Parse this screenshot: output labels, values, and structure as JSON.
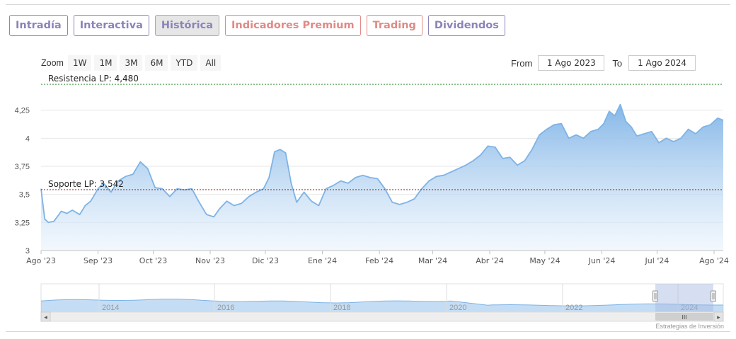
{
  "tabs": [
    {
      "label": "Intradía",
      "color": "#8a84b8"
    },
    {
      "label": "Interactiva",
      "color": "#8a84b8"
    },
    {
      "label": "Histórica",
      "color": "#8a84b8",
      "active": true
    },
    {
      "label": "Indicadores Premium",
      "color": "#e08a86"
    },
    {
      "label": "Trading",
      "color": "#e08a86"
    },
    {
      "label": "Dividendos",
      "color": "#8a84b8"
    }
  ],
  "zoom": {
    "label": "Zoom",
    "buttons": [
      "1W",
      "1M",
      "3M",
      "6M",
      "YTD",
      "All"
    ]
  },
  "range": {
    "from_label": "From",
    "from_value": "1 Ago 2023",
    "to_label": "To",
    "to_value": "1 Ago 2024"
  },
  "credits": "Estrategias de Inversión",
  "colors": {
    "line": "#7eb3e6",
    "fill_top": "#7eb3e6",
    "fill_bottom": "#eaf3fc",
    "resistance": "#3a8f3a",
    "support": "#8b1a1a",
    "grid": "#e6e6e6"
  },
  "chart_data": {
    "type": "area",
    "ylim": [
      3,
      4.5
    ],
    "y_ticks": [
      3,
      3.25,
      3.5,
      3.75,
      4,
      4.25
    ],
    "y_tick_labels": [
      "3",
      "3,25",
      "3,5",
      "3,75",
      "4",
      "4,25"
    ],
    "xlim": [
      "2023-08-01",
      "2024-08-06"
    ],
    "x_ticks": [
      {
        "date": "2023-08-01",
        "label": "Ago '23"
      },
      {
        "date": "2023-09-01",
        "label": "Sep '23"
      },
      {
        "date": "2023-10-01",
        "label": "Oct '23"
      },
      {
        "date": "2023-11-01",
        "label": "Nov '23"
      },
      {
        "date": "2023-12-01",
        "label": "Dic '23"
      },
      {
        "date": "2024-01-01",
        "label": "Ene '24"
      },
      {
        "date": "2024-02-01",
        "label": "Feb '24"
      },
      {
        "date": "2024-03-01",
        "label": "Mar '24"
      },
      {
        "date": "2024-04-01",
        "label": "Abr '24"
      },
      {
        "date": "2024-05-01",
        "label": "May '24"
      },
      {
        "date": "2024-06-01",
        "label": "Jun '24"
      },
      {
        "date": "2024-07-01",
        "label": "Jul '24"
      },
      {
        "date": "2024-08-01",
        "label": "Ago '24"
      }
    ],
    "plot_lines": [
      {
        "label": "Resistencia LP: 4,480",
        "value": 4.48,
        "style": "resistance"
      },
      {
        "label": "Soporte LP: 3,542",
        "value": 3.542,
        "style": "support"
      }
    ],
    "series": [
      {
        "x": [
          "2023-08-01",
          "2023-08-03",
          "2023-08-05",
          "2023-08-08",
          "2023-08-12",
          "2023-08-15",
          "2023-08-18",
          "2023-08-22",
          "2023-08-25",
          "2023-08-28",
          "2023-09-01",
          "2023-09-04",
          "2023-09-08",
          "2023-09-12",
          "2023-09-16",
          "2023-09-20",
          "2023-09-24",
          "2023-09-28",
          "2023-10-02",
          "2023-10-06",
          "2023-10-10",
          "2023-10-14",
          "2023-10-18",
          "2023-10-22",
          "2023-10-26",
          "2023-10-30",
          "2023-11-03",
          "2023-11-06",
          "2023-11-10",
          "2023-11-14",
          "2023-11-18",
          "2023-11-22",
          "2023-11-26",
          "2023-11-30",
          "2023-12-03",
          "2023-12-06",
          "2023-12-09",
          "2023-12-12",
          "2023-12-15",
          "2023-12-18",
          "2023-12-22",
          "2023-12-26",
          "2023-12-30",
          "2024-01-03",
          "2024-01-07",
          "2024-01-11",
          "2024-01-15",
          "2024-01-19",
          "2024-01-23",
          "2024-01-27",
          "2024-01-31",
          "2024-02-04",
          "2024-02-08",
          "2024-02-12",
          "2024-02-16",
          "2024-02-20",
          "2024-02-24",
          "2024-02-28",
          "2024-03-03",
          "2024-03-07",
          "2024-03-11",
          "2024-03-15",
          "2024-03-19",
          "2024-03-23",
          "2024-03-27",
          "2024-03-31",
          "2024-04-04",
          "2024-04-08",
          "2024-04-12",
          "2024-04-16",
          "2024-04-20",
          "2024-04-24",
          "2024-04-28",
          "2024-05-02",
          "2024-05-06",
          "2024-05-10",
          "2024-05-14",
          "2024-05-18",
          "2024-05-22",
          "2024-05-26",
          "2024-05-30",
          "2024-06-02",
          "2024-06-05",
          "2024-06-08",
          "2024-06-11",
          "2024-06-14",
          "2024-06-17",
          "2024-06-20",
          "2024-06-24",
          "2024-06-28",
          "2024-07-02",
          "2024-07-06",
          "2024-07-10",
          "2024-07-14",
          "2024-07-18",
          "2024-07-22",
          "2024-07-26",
          "2024-07-30",
          "2024-08-03",
          "2024-08-06"
        ],
        "y": [
          3.55,
          3.28,
          3.25,
          3.26,
          3.35,
          3.33,
          3.36,
          3.32,
          3.4,
          3.44,
          3.55,
          3.6,
          3.52,
          3.62,
          3.66,
          3.68,
          3.79,
          3.73,
          3.56,
          3.55,
          3.48,
          3.55,
          3.54,
          3.55,
          3.43,
          3.32,
          3.3,
          3.37,
          3.44,
          3.4,
          3.42,
          3.48,
          3.52,
          3.55,
          3.65,
          3.88,
          3.9,
          3.87,
          3.6,
          3.43,
          3.52,
          3.44,
          3.4,
          3.55,
          3.58,
          3.62,
          3.6,
          3.65,
          3.67,
          3.65,
          3.64,
          3.55,
          3.43,
          3.41,
          3.43,
          3.46,
          3.55,
          3.62,
          3.66,
          3.67,
          3.7,
          3.73,
          3.76,
          3.8,
          3.85,
          3.93,
          3.92,
          3.82,
          3.83,
          3.76,
          3.8,
          3.9,
          4.03,
          4.08,
          4.12,
          4.13,
          4.0,
          4.03,
          4.0,
          4.06,
          4.08,
          4.13,
          4.24,
          4.2,
          4.3,
          4.15,
          4.1,
          4.02,
          4.04,
          4.06,
          3.96,
          4.0,
          3.97,
          4.0,
          4.08,
          4.04,
          4.1,
          4.12,
          4.18,
          4.16
        ]
      }
    ]
  },
  "navigator": {
    "labels": [
      "2014",
      "2016",
      "2018",
      "2020",
      "2022",
      "2024"
    ],
    "scroll_left": "◂",
    "scroll_right": "▸",
    "scroll_grip": "III"
  }
}
